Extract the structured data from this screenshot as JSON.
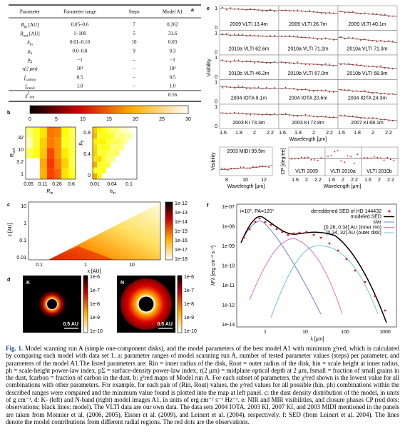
{
  "panel_a": {
    "label": "a",
    "header": [
      "Parameter",
      "Parameter range",
      "Steps",
      "Model A1"
    ],
    "rows": [
      {
        "param": {
          "sym": "R",
          "sub": "in",
          "unit": " [AU]"
        },
        "range": "0.05–0.6",
        "steps": "7",
        "model": "0.262"
      },
      {
        "param": {
          "sym": "R",
          "sub": "out",
          "unit": " [AU]"
        },
        "range": "1–100",
        "steps": "5",
        "model": "31.6"
      },
      {
        "param": {
          "sym": "h",
          "sub": "in"
        },
        "range": "0.01–0.10",
        "steps": "10",
        "model": "0.03"
      },
      {
        "param": {
          "sym": "p",
          "sub": "h"
        },
        "range": "0.0–0.8",
        "steps": "9",
        "model": "0.3"
      },
      {
        "param": {
          "sym": "p",
          "sub": "Σ"
        },
        "range": "−1",
        "steps": "–",
        "model": "−1"
      },
      {
        "param": {
          "sym": "τ(2 μm)"
        },
        "range": "10⁴",
        "steps": "–",
        "model": "10⁴"
      },
      {
        "param": {
          "sym": "f",
          "sub": "carbon"
        },
        "range": "0.5",
        "steps": "–",
        "model": "0.5"
      },
      {
        "param": {
          "sym": "f",
          "sub": "small"
        },
        "range": "1.0",
        "steps": "–",
        "model": "1.0"
      },
      {
        "param": {
          "sym": "χ",
          "sup": "2",
          "sub": "red"
        },
        "range": "",
        "steps": "",
        "model": "8.56"
      }
    ]
  },
  "panel_b": {
    "label": "b",
    "colorbar_ticks": [
      "0",
      "5",
      "10",
      "15",
      "20",
      "25",
      "30"
    ],
    "left": {
      "ylabel": {
        "sym": "R",
        "sub": "out"
      },
      "yticks": [
        "1",
        "3.2",
        "10",
        "32"
      ],
      "xlabel": {
        "sym": "R",
        "sub": "in"
      },
      "xticks": [
        "0.05",
        "0.11",
        "0.26",
        "0.6"
      ]
    },
    "right": {
      "ylabel": {
        "sym": "p",
        "sub": "h"
      },
      "yticks": [
        "0",
        "0.4",
        "0.8"
      ],
      "xlabel": {
        "sym": "h",
        "sub": "in"
      },
      "xticks": [
        "0.01",
        "0.04",
        "0.1"
      ]
    }
  },
  "panel_c": {
    "label": "c",
    "ylabel": "z [AU]",
    "yticks": [
      "0.01",
      "0.1",
      "1",
      "10"
    ],
    "xlabel": "x [AU]",
    "xticks": [
      "0.1",
      "1",
      "10"
    ],
    "colorbar_ticks": [
      "1e-12",
      "1e-13",
      "1e-14",
      "1e-15",
      "1e-16",
      "1e-17",
      "1e-18"
    ]
  },
  "panel_d": {
    "label": "d",
    "images": [
      {
        "band": "K",
        "scale": "0.5 AU"
      },
      {
        "band": "N",
        "scale": "0.5 AU"
      }
    ],
    "colorbar_ticks": [
      "1e-6",
      "1e-7",
      "1e-8",
      "1e-9",
      "1e-10"
    ]
  },
  "panel_e": {
    "label": "e",
    "ylabel": "Visibility",
    "yticks": [
      "0",
      "1"
    ],
    "xticks": [
      "1.6",
      "1.8",
      "2",
      "2.2"
    ],
    "xlabel": "Wavelength [μm]",
    "panels": [
      "2009 VLTI 13.4m",
      "2009 VLTI 26.7m",
      "2009 VLTI 40.1m",
      "2010a VLTI 62.6m",
      "2010a VLTI 71.2m",
      "2010a VLTI 71.3m",
      "2010b VLTI 46.2m",
      "2010b VLTI 67.0m",
      "2010b VLTI 68.9m",
      "2004 IOTA 9.1m",
      "2004 IOTA 20.6m",
      "2004 IOTA 24.3m",
      "2003 KI 73.3m",
      "2003 KI 72.8m",
      "2007 KI 68.1m"
    ],
    "midi": {
      "label": "2003 MIDI 99.5m",
      "ylabel": "Visibility",
      "xticks": [
        "8",
        "10",
        "12"
      ],
      "xlabel": "Wavelength [μm]"
    },
    "cp": {
      "ylabel": "CP [degree]",
      "panels": [
        "VLTI 2009",
        "VLTI 2010a",
        "VLTI 2010b"
      ],
      "xticks": [
        "1.6",
        "2",
        "2.2"
      ],
      "xlabel": "Wavelength [μm]"
    }
  },
  "panel_f": {
    "label": "f",
    "annotation": "i=10°, PA=120°",
    "legend": [
      "dereddened SED of HD 144432",
      "modeled SED",
      "star",
      "[0.26, 0.34] AU (inner rim)",
      "[0.34, 32] AU (outer disk)"
    ],
    "yticks": [
      "1e-07",
      "1e-08",
      "1e-09",
      "1e-10",
      "1e-11",
      "1e-12",
      "1e-13"
    ],
    "xticks": [
      "1",
      "10",
      "100",
      "1000"
    ],
    "xlabel": "λ [μm]",
    "ylabel": "λFλ [erg cm⁻² s⁻¹]"
  },
  "caption": {
    "label": "Fig. 1.",
    "text": "Model scanning run A (simple one-component disks), and the model parameters of the best model A1 with minimum χ²red, which is calculated by comparing each model with data set 1. a: parameter ranges of model scanning run A, number of tested parameter values (steps) per parameter, and parameters of the model A1.The listed parameters are: Rin = inner radius of the disk, Rout = outer radius of the disk, hin = scale height at inner radius, ph = scale-height power-law index, pΣ = surface-density power-law index, τ(2 μm) = midplane optical depth at 2 μm, fsmall = fraction of small grains in the dust, fcarbon = fraction of carbon in the dust. b: χ²red maps of Model run A. For each subset of parameters, the χ²red shown is the lowest value for all combinations with other parameters. For example, for each pair of (Rin, Rout) values, the χ²red values for all possible (hin, ph) combinations within the described ranges were compared and the minimum value found is plotted into the map at left panel. c: the dust density distribution of the model, in units of g cm⁻³. d: K- (left) and N-band (right) model images A1, in units of erg cm⁻² s⁻¹ Hz⁻¹. e: NIR and MIR visibilities, and closure phases CP (red dots: observations; black lines: model). The VLTI data are our own data. The data sets 2004 IOTA, 2003 KI, 2007 KI, and 2003 MIDI mentioned in the panels are taken from Monnier et al. (2006, 2005), Eisner et al. (2009), and Leinert et al. (2004), respectively. f: SED (from Leinert et al. 2004). The lines denote the model contributions from different radial regions. The red dots are the observations."
  }
}
